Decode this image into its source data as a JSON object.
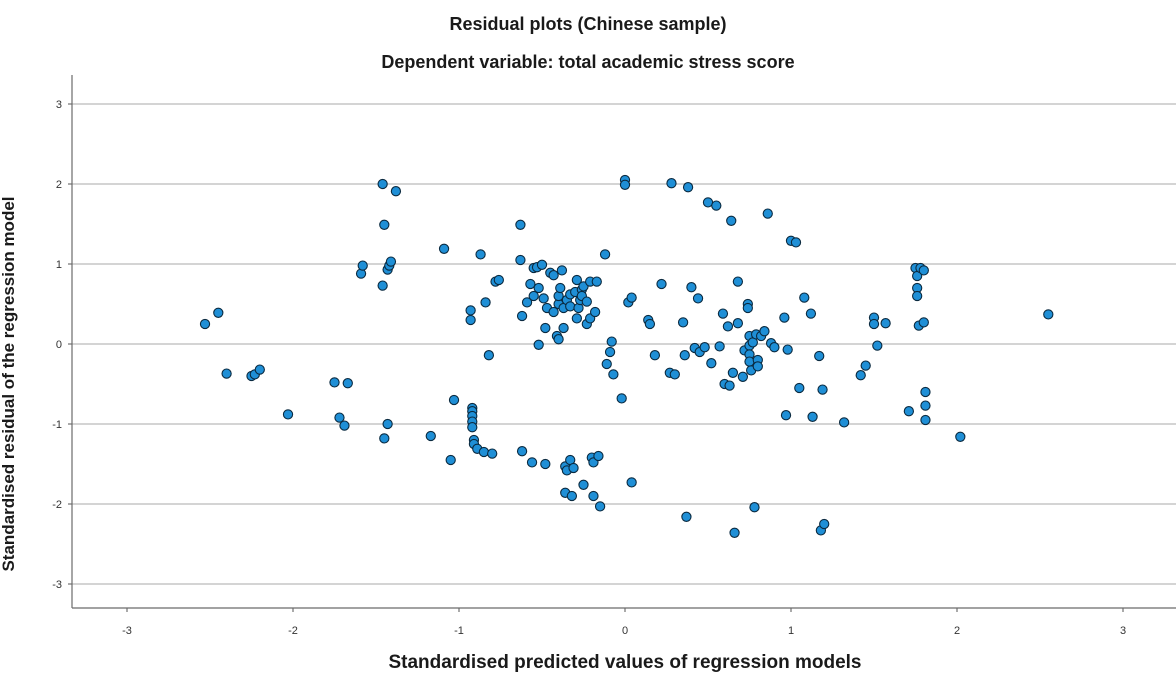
{
  "chart_data": {
    "type": "scatter",
    "title": "Residual plots (Chinese sample)",
    "subtitle": "Dependent variable: total academic stress score",
    "xlabel": "Standardised predicted values of regression models",
    "ylabel": "Standardised residual of the regression model",
    "xlim": [
      -3.0,
      3.3
    ],
    "ylim": [
      -3.3,
      3.3
    ],
    "xticks": [
      "-3",
      "-2",
      "-1",
      "0",
      "1",
      "2",
      "3"
    ],
    "yticks": [
      "3",
      "2",
      "1",
      "0",
      "-1",
      "-2",
      "-3"
    ],
    "grid": "horizontal",
    "marker_color": "#1f8fd6",
    "marker_edge": "#0a2a40",
    "points": [
      [
        -2.53,
        0.25
      ],
      [
        -2.45,
        0.39
      ],
      [
        -2.4,
        -0.37
      ],
      [
        -2.25,
        -0.4
      ],
      [
        -2.23,
        -0.38
      ],
      [
        -2.2,
        -0.32
      ],
      [
        -2.03,
        -0.88
      ],
      [
        -1.75,
        -0.48
      ],
      [
        -1.72,
        -0.92
      ],
      [
        -1.69,
        -1.02
      ],
      [
        -1.67,
        -0.49
      ],
      [
        -1.59,
        0.88
      ],
      [
        -1.58,
        0.98
      ],
      [
        -1.46,
        2.0
      ],
      [
        -1.45,
        1.49
      ],
      [
        -1.46,
        0.73
      ],
      [
        -1.43,
        0.93
      ],
      [
        -1.42,
        0.98
      ],
      [
        -1.41,
        1.03
      ],
      [
        -1.38,
        1.91
      ],
      [
        -1.43,
        -1.0
      ],
      [
        -1.45,
        -1.18
      ],
      [
        -1.17,
        -1.15
      ],
      [
        -1.09,
        1.19
      ],
      [
        -1.05,
        -1.45
      ],
      [
        -1.03,
        -0.7
      ],
      [
        -0.93,
        0.42
      ],
      [
        -0.93,
        0.3
      ],
      [
        -0.92,
        -0.8
      ],
      [
        -0.92,
        -0.84
      ],
      [
        -0.92,
        -0.9
      ],
      [
        -0.92,
        -0.97
      ],
      [
        -0.92,
        -1.04
      ],
      [
        -0.91,
        -1.2
      ],
      [
        -0.91,
        -1.25
      ],
      [
        -0.89,
        -1.31
      ],
      [
        -0.87,
        1.12
      ],
      [
        -0.85,
        -1.35
      ],
      [
        -0.84,
        0.52
      ],
      [
        -0.82,
        -0.14
      ],
      [
        -0.8,
        -1.37
      ],
      [
        -0.78,
        0.78
      ],
      [
        -0.76,
        0.8
      ],
      [
        -0.63,
        1.49
      ],
      [
        -0.63,
        1.05
      ],
      [
        -0.62,
        0.35
      ],
      [
        -0.62,
        -1.34
      ],
      [
        -0.59,
        0.52
      ],
      [
        -0.57,
        0.75
      ],
      [
        -0.56,
        -1.48
      ],
      [
        -0.55,
        0.95
      ],
      [
        -0.55,
        0.6
      ],
      [
        -0.53,
        0.96
      ],
      [
        -0.52,
        -0.01
      ],
      [
        -0.52,
        0.7
      ],
      [
        -0.5,
        0.99
      ],
      [
        -0.49,
        0.57
      ],
      [
        -0.48,
        0.2
      ],
      [
        -0.48,
        -1.5
      ],
      [
        -0.47,
        0.45
      ],
      [
        -0.45,
        0.89
      ],
      [
        -0.43,
        0.86
      ],
      [
        -0.43,
        0.4
      ],
      [
        -0.41,
        0.1
      ],
      [
        -0.4,
        0.5
      ],
      [
        -0.4,
        0.6
      ],
      [
        -0.4,
        0.06
      ],
      [
        -0.39,
        0.7
      ],
      [
        -0.38,
        0.92
      ],
      [
        -0.37,
        0.45
      ],
      [
        -0.37,
        0.2
      ],
      [
        -0.36,
        -1.53
      ],
      [
        -0.36,
        -1.86
      ],
      [
        -0.35,
        0.55
      ],
      [
        -0.35,
        -1.58
      ],
      [
        -0.33,
        0.62
      ],
      [
        -0.33,
        0.47
      ],
      [
        -0.33,
        -1.45
      ],
      [
        -0.32,
        -1.9
      ],
      [
        -0.31,
        -1.55
      ],
      [
        -0.3,
        0.65
      ],
      [
        -0.29,
        0.8
      ],
      [
        -0.29,
        0.32
      ],
      [
        -0.28,
        0.45
      ],
      [
        -0.27,
        0.55
      ],
      [
        -0.26,
        0.68
      ],
      [
        -0.26,
        0.6
      ],
      [
        -0.25,
        0.72
      ],
      [
        -0.25,
        -1.76
      ],
      [
        -0.23,
        0.53
      ],
      [
        -0.23,
        0.25
      ],
      [
        -0.21,
        0.32
      ],
      [
        -0.21,
        0.78
      ],
      [
        -0.2,
        -1.42
      ],
      [
        -0.19,
        -1.48
      ],
      [
        -0.19,
        -1.9
      ],
      [
        -0.18,
        0.4
      ],
      [
        -0.17,
        0.78
      ],
      [
        -0.16,
        -1.4
      ],
      [
        -0.15,
        -2.03
      ],
      [
        -0.12,
        1.12
      ],
      [
        -0.11,
        -0.25
      ],
      [
        -0.09,
        -0.1
      ],
      [
        -0.08,
        0.03
      ],
      [
        -0.07,
        -0.38
      ],
      [
        -0.02,
        -0.68
      ],
      [
        0.0,
        2.05
      ],
      [
        0.0,
        1.99
      ],
      [
        0.02,
        0.52
      ],
      [
        0.04,
        0.58
      ],
      [
        0.04,
        -1.73
      ],
      [
        0.14,
        0.3
      ],
      [
        0.15,
        0.25
      ],
      [
        0.18,
        -0.14
      ],
      [
        0.22,
        0.75
      ],
      [
        0.27,
        -0.36
      ],
      [
        0.28,
        2.01
      ],
      [
        0.3,
        -0.38
      ],
      [
        0.35,
        0.27
      ],
      [
        0.36,
        -0.14
      ],
      [
        0.37,
        -2.16
      ],
      [
        0.38,
        1.96
      ],
      [
        0.4,
        0.71
      ],
      [
        0.42,
        -0.05
      ],
      [
        0.44,
        0.57
      ],
      [
        0.45,
        -0.1
      ],
      [
        0.48,
        -0.04
      ],
      [
        0.5,
        1.77
      ],
      [
        0.52,
        -0.24
      ],
      [
        0.55,
        1.73
      ],
      [
        0.57,
        -0.03
      ],
      [
        0.59,
        0.38
      ],
      [
        0.6,
        -0.5
      ],
      [
        0.62,
        0.22
      ],
      [
        0.63,
        -0.52
      ],
      [
        0.64,
        1.54
      ],
      [
        0.65,
        -0.36
      ],
      [
        0.66,
        -2.36
      ],
      [
        0.68,
        0.26
      ],
      [
        0.68,
        0.78
      ],
      [
        0.71,
        -0.41
      ],
      [
        0.72,
        -0.08
      ],
      [
        0.74,
        0.5
      ],
      [
        0.74,
        0.45
      ],
      [
        0.75,
        0.1
      ],
      [
        0.75,
        -0.02
      ],
      [
        0.75,
        -0.13
      ],
      [
        0.75,
        -0.22
      ],
      [
        0.76,
        -0.33
      ],
      [
        0.77,
        0.02
      ],
      [
        0.78,
        -2.04
      ],
      [
        0.79,
        0.12
      ],
      [
        0.8,
        -0.2
      ],
      [
        0.8,
        -0.28
      ],
      [
        0.82,
        0.1
      ],
      [
        0.84,
        0.16
      ],
      [
        0.86,
        1.63
      ],
      [
        0.88,
        0.01
      ],
      [
        0.9,
        -0.04
      ],
      [
        0.96,
        0.33
      ],
      [
        0.97,
        -0.89
      ],
      [
        0.98,
        -0.07
      ],
      [
        1.0,
        1.29
      ],
      [
        1.03,
        1.27
      ],
      [
        1.05,
        -0.55
      ],
      [
        1.08,
        0.58
      ],
      [
        1.12,
        0.38
      ],
      [
        1.13,
        -0.91
      ],
      [
        1.17,
        -0.15
      ],
      [
        1.18,
        -2.33
      ],
      [
        1.19,
        -0.57
      ],
      [
        1.2,
        -2.25
      ],
      [
        1.32,
        -0.98
      ],
      [
        1.42,
        -0.39
      ],
      [
        1.45,
        -0.27
      ],
      [
        1.5,
        0.33
      ],
      [
        1.5,
        0.25
      ],
      [
        1.52,
        -0.02
      ],
      [
        1.57,
        0.26
      ],
      [
        1.71,
        -0.84
      ],
      [
        1.75,
        0.95
      ],
      [
        1.76,
        0.85
      ],
      [
        1.76,
        0.7
      ],
      [
        1.76,
        0.6
      ],
      [
        1.77,
        0.23
      ],
      [
        1.78,
        0.95
      ],
      [
        1.8,
        0.92
      ],
      [
        1.8,
        0.27
      ],
      [
        1.81,
        -0.6
      ],
      [
        1.81,
        -0.77
      ],
      [
        1.81,
        -0.95
      ],
      [
        2.02,
        -1.16
      ],
      [
        2.55,
        0.37
      ]
    ]
  }
}
